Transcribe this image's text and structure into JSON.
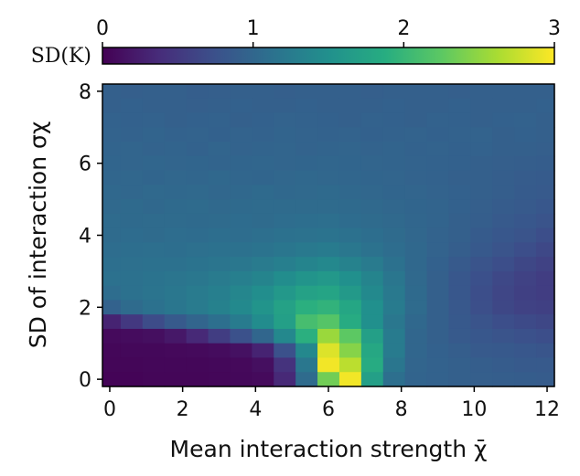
{
  "chart_data": {
    "type": "heatmap",
    "xlabel": "Mean interaction strength χ̄",
    "ylabel": "SD of interaction σχ",
    "colorbar_label": "SD(K)",
    "colormap": "viridis",
    "xlim": [
      -0.2,
      12.2
    ],
    "ylim": [
      -0.2,
      8.2
    ],
    "x_ticks": [
      "0",
      "2",
      "4",
      "6",
      "8",
      "10",
      "12"
    ],
    "y_ticks": [
      "0",
      "2",
      "4",
      "6",
      "8"
    ],
    "colorbar_ticks": [
      "0",
      "1",
      "2",
      "3"
    ],
    "colorbar_range": [
      0,
      3
    ],
    "x": [
      0.0,
      0.6,
      1.2,
      1.8,
      2.4,
      3.0,
      3.6,
      4.2,
      4.8,
      5.4,
      6.0,
      6.6,
      7.2,
      7.8,
      8.4,
      9.0,
      9.6,
      10.2,
      10.8,
      11.4,
      12.0
    ],
    "y": [
      8.0,
      7.6,
      7.2,
      6.8,
      6.4,
      6.0,
      5.6,
      5.2,
      4.8,
      4.4,
      4.0,
      3.6,
      3.2,
      2.8,
      2.4,
      2.0,
      1.6,
      1.2,
      0.8,
      0.4,
      0.0
    ],
    "z": [
      [
        0.92,
        0.91,
        0.93,
        0.92,
        0.9,
        0.91,
        0.92,
        0.93,
        0.91,
        0.92,
        0.93,
        0.92,
        0.91,
        0.92,
        0.93,
        0.92,
        0.91,
        0.92,
        0.93,
        0.92,
        0.93
      ],
      [
        0.93,
        0.94,
        0.92,
        0.93,
        0.91,
        0.93,
        0.94,
        0.92,
        0.93,
        0.94,
        0.93,
        0.92,
        0.93,
        0.94,
        0.92,
        0.93,
        0.94,
        0.93,
        0.92,
        0.93,
        0.94
      ],
      [
        0.95,
        0.94,
        0.95,
        0.93,
        0.94,
        0.95,
        0.93,
        0.94,
        0.96,
        0.95,
        0.94,
        0.93,
        0.95,
        0.94,
        0.93,
        0.95,
        0.94,
        0.92,
        0.94,
        0.95,
        0.93
      ],
      [
        0.96,
        0.95,
        0.97,
        0.95,
        0.96,
        0.94,
        0.96,
        0.95,
        0.97,
        0.96,
        0.95,
        0.96,
        0.94,
        0.95,
        0.96,
        0.94,
        0.95,
        0.96,
        0.93,
        0.94,
        0.92
      ],
      [
        0.97,
        0.98,
        0.96,
        0.97,
        0.95,
        0.98,
        0.96,
        0.97,
        0.98,
        0.96,
        0.97,
        0.98,
        0.96,
        0.97,
        0.95,
        0.96,
        0.94,
        0.95,
        0.92,
        0.93,
        0.91
      ],
      [
        0.99,
        0.98,
        1.0,
        0.98,
        0.99,
        0.97,
        0.99,
        1.0,
        0.98,
        0.99,
        1.0,
        0.99,
        0.98,
        0.97,
        0.96,
        0.95,
        0.94,
        0.92,
        0.91,
        0.9,
        0.89
      ],
      [
        1.0,
        1.01,
        0.99,
        1.01,
        1.0,
        1.02,
        1.0,
        0.99,
        1.01,
        1.02,
        1.01,
        1.0,
        0.99,
        0.98,
        0.96,
        0.95,
        0.93,
        0.92,
        0.9,
        0.88,
        0.87
      ],
      [
        1.02,
        1.01,
        1.03,
        1.02,
        1.03,
        1.01,
        1.02,
        1.04,
        1.02,
        1.03,
        1.04,
        1.02,
        1.01,
        0.99,
        0.98,
        0.96,
        0.94,
        0.92,
        0.9,
        0.87,
        0.85
      ],
      [
        1.03,
        1.04,
        1.02,
        1.04,
        1.05,
        1.03,
        1.04,
        1.05,
        1.06,
        1.05,
        1.06,
        1.04,
        1.03,
        1.01,
        0.99,
        0.97,
        0.94,
        0.91,
        0.88,
        0.85,
        0.82
      ],
      [
        1.05,
        1.04,
        1.06,
        1.05,
        1.04,
        1.06,
        1.07,
        1.05,
        1.08,
        1.09,
        1.1,
        1.07,
        1.05,
        1.03,
        1.0,
        0.97,
        0.93,
        0.9,
        0.85,
        0.82,
        0.78
      ],
      [
        1.06,
        1.07,
        1.06,
        1.08,
        1.07,
        1.09,
        1.08,
        1.1,
        1.12,
        1.14,
        1.15,
        1.12,
        1.09,
        1.05,
        1.01,
        0.96,
        0.92,
        0.87,
        0.82,
        0.78,
        0.72
      ],
      [
        1.08,
        1.09,
        1.1,
        1.09,
        1.11,
        1.12,
        1.13,
        1.15,
        1.18,
        1.22,
        1.25,
        1.2,
        1.14,
        1.08,
        1.02,
        0.96,
        0.9,
        0.84,
        0.78,
        0.72,
        0.66
      ],
      [
        1.1,
        1.11,
        1.12,
        1.13,
        1.15,
        1.17,
        1.2,
        1.24,
        1.3,
        1.36,
        1.4,
        1.33,
        1.24,
        1.12,
        1.02,
        0.94,
        0.86,
        0.78,
        0.72,
        0.65,
        0.6
      ],
      [
        1.12,
        1.13,
        1.15,
        1.17,
        1.2,
        1.24,
        1.3,
        1.36,
        1.46,
        1.55,
        1.6,
        1.5,
        1.35,
        1.18,
        1.03,
        0.92,
        0.82,
        0.74,
        0.66,
        0.6,
        0.55
      ],
      [
        1.08,
        1.12,
        1.16,
        1.2,
        1.24,
        1.3,
        1.38,
        1.47,
        1.6,
        1.72,
        1.76,
        1.62,
        1.42,
        1.22,
        1.04,
        0.92,
        0.82,
        0.72,
        0.64,
        0.58,
        0.55
      ],
      [
        0.95,
        1.05,
        1.12,
        1.18,
        1.24,
        1.32,
        1.42,
        1.55,
        1.72,
        1.9,
        1.95,
        1.78,
        1.5,
        1.25,
        1.05,
        0.93,
        0.83,
        0.73,
        0.65,
        0.6,
        0.58
      ],
      [
        0.3,
        0.5,
        0.7,
        0.85,
        0.98,
        1.1,
        1.25,
        1.45,
        1.7,
        2.1,
        2.2,
        1.85,
        1.5,
        1.2,
        1.02,
        0.92,
        0.84,
        0.78,
        0.72,
        0.68,
        0.65
      ],
      [
        0.08,
        0.1,
        0.12,
        0.2,
        0.35,
        0.55,
        0.75,
        1.0,
        1.4,
        1.9,
        2.55,
        2.25,
        1.7,
        1.25,
        1.0,
        0.92,
        0.86,
        0.82,
        0.78,
        0.75,
        0.72
      ],
      [
        0.05,
        0.06,
        0.06,
        0.07,
        0.08,
        0.1,
        0.14,
        0.3,
        0.75,
        1.4,
        2.85,
        2.45,
        1.8,
        1.25,
        1.0,
        0.94,
        0.9,
        0.86,
        0.84,
        0.82,
        0.8
      ],
      [
        0.04,
        0.04,
        0.05,
        0.05,
        0.05,
        0.06,
        0.07,
        0.12,
        0.45,
        1.2,
        2.95,
        2.7,
        1.85,
        1.18,
        0.98,
        0.95,
        0.92,
        0.9,
        0.88,
        0.86,
        0.85
      ],
      [
        0.03,
        0.03,
        0.04,
        0.04,
        0.04,
        0.05,
        0.06,
        0.08,
        0.35,
        1.05,
        2.35,
        2.95,
        1.7,
        1.1,
        0.97,
        0.95,
        0.93,
        0.91,
        0.9,
        0.89,
        0.88
      ]
    ]
  }
}
